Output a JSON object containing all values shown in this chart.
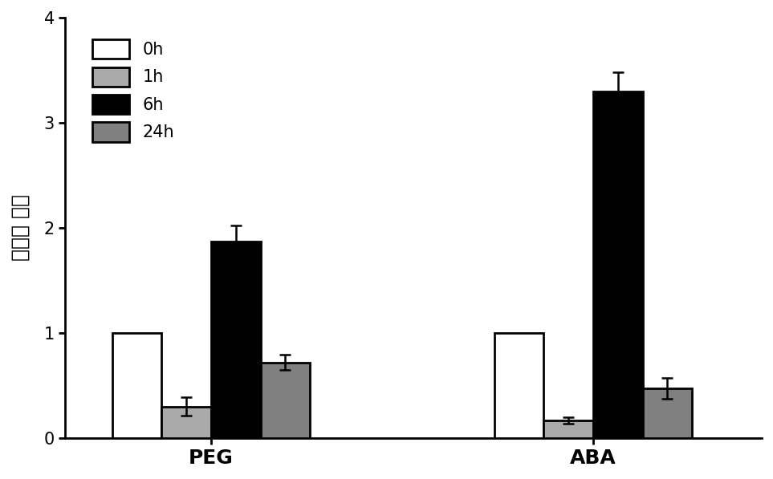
{
  "groups": [
    "PEG",
    "ABA"
  ],
  "time_labels": [
    "0h",
    "1h",
    "6h",
    "24h"
  ],
  "bar_colors": [
    "#ffffff",
    "#aaaaaa",
    "#000000",
    "#808080"
  ],
  "bar_edgecolors": [
    "#000000",
    "#000000",
    "#000000",
    "#000000"
  ],
  "values": {
    "PEG": [
      1.0,
      0.3,
      1.87,
      0.72
    ],
    "ABA": [
      1.0,
      0.17,
      3.3,
      0.47
    ]
  },
  "errors": {
    "PEG": [
      0.0,
      0.09,
      0.15,
      0.07
    ],
    "ABA": [
      0.0,
      0.03,
      0.18,
      0.1
    ]
  },
  "ylabel": "相对表 达量",
  "ylim": [
    0,
    4
  ],
  "yticks": [
    0,
    1,
    2,
    3,
    4
  ],
  "bar_width": 0.22,
  "group_centers": [
    1.15,
    2.85
  ],
  "legend_loc": "upper left",
  "legend_fontsize": 15,
  "ylabel_fontsize": 18,
  "tick_fontsize": 15,
  "xlabel_fontsize": 18,
  "background_color": "#ffffff",
  "linewidth": 2.0,
  "xlim": [
    0.5,
    3.6
  ]
}
